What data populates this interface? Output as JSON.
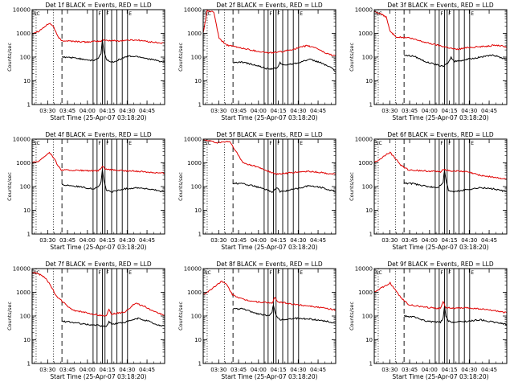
{
  "chart_data": {
    "type": "line",
    "layout": "3x3 grid",
    "legend_text": "BLACK = Events, RED = LLD",
    "series": [
      {
        "name": "Events",
        "color": "#000000"
      },
      {
        "name": "LLD",
        "color": "#e00000"
      }
    ],
    "xlabel": "Start Time (25-Apr-07 03:18:20)",
    "ylabel": "Counts/sec",
    "y_scale": "log",
    "ylim": [
      1,
      10000
    ],
    "y_ticks": [
      "1",
      "10",
      "100",
      "1000",
      "10000"
    ],
    "x_unit": "minutes after 03:18:20",
    "xlim": [
      0,
      100
    ],
    "x_ticks": [
      {
        "label": "03:30",
        "x": 11.7
      },
      {
        "label": "03:45",
        "x": 26.7
      },
      {
        "label": "04:00",
        "x": 41.7
      },
      {
        "label": "04:15",
        "x": 56.7
      },
      {
        "label": "04:30",
        "x": 71.7
      },
      {
        "label": "04:45",
        "x": 86.7
      }
    ],
    "dotted_markers_x": [
      3,
      16
    ],
    "dashed_marker_x": 22.5,
    "solid_markers_x": [
      46,
      49,
      53,
      55,
      60,
      64,
      68,
      72
    ],
    "flag_markers": [
      {
        "text": "F",
        "x": 49
      },
      {
        "text": "F",
        "x": 55
      },
      {
        "text": "E",
        "x": 72
      }
    ],
    "panels": [
      {
        "title": "Det 1f BLACK = Events, RED = LLD",
        "start_label": "SC",
        "start_label_x": 1,
        "lld": [
          [
            0,
            1000
          ],
          [
            5,
            1250
          ],
          [
            10,
            2000
          ],
          [
            13,
            2700
          ],
          [
            16,
            2000
          ],
          [
            19,
            800
          ],
          [
            22,
            500
          ],
          [
            30,
            470
          ],
          [
            40,
            430
          ],
          [
            46,
            450
          ],
          [
            52,
            470
          ],
          [
            54,
            520
          ],
          [
            58,
            500
          ],
          [
            66,
            480
          ],
          [
            72,
            520
          ],
          [
            80,
            520
          ],
          [
            90,
            430
          ],
          [
            100,
            380
          ]
        ],
        "events": [
          [
            22.5,
            100
          ],
          [
            30,
            95
          ],
          [
            40,
            80
          ],
          [
            46,
            70
          ],
          [
            50,
            90
          ],
          [
            52,
            140
          ],
          [
            53,
            500
          ],
          [
            54,
            200
          ],
          [
            56,
            80
          ],
          [
            60,
            60
          ],
          [
            66,
            80
          ],
          [
            72,
            110
          ],
          [
            80,
            105
          ],
          [
            90,
            80
          ],
          [
            100,
            60
          ]
        ]
      },
      {
        "title": "Det 2f BLACK = Events, RED = LLD",
        "start_label": "SC",
        "start_label_x": 1,
        "lld": [
          [
            0,
            1000
          ],
          [
            3,
            9000
          ],
          [
            8,
            8000
          ],
          [
            12,
            600
          ],
          [
            18,
            320
          ],
          [
            26,
            260
          ],
          [
            40,
            180
          ],
          [
            50,
            150
          ],
          [
            60,
            170
          ],
          [
            70,
            230
          ],
          [
            78,
            300
          ],
          [
            85,
            250
          ],
          [
            92,
            150
          ],
          [
            100,
            110
          ]
        ],
        "events": [
          [
            22.5,
            60
          ],
          [
            30,
            60
          ],
          [
            40,
            45
          ],
          [
            50,
            30
          ],
          [
            56,
            35
          ],
          [
            58,
            60
          ],
          [
            60,
            45
          ],
          [
            70,
            55
          ],
          [
            80,
            80
          ],
          [
            88,
            60
          ],
          [
            95,
            40
          ],
          [
            100,
            25
          ]
        ]
      },
      {
        "title": "Det 3f BLACK = Events, RED = LLD",
        "start_label": "SC",
        "start_label_x": 1,
        "lld": [
          [
            0,
            8000
          ],
          [
            4,
            7000
          ],
          [
            9,
            5000
          ],
          [
            12,
            1200
          ],
          [
            17,
            700
          ],
          [
            26,
            650
          ],
          [
            40,
            400
          ],
          [
            55,
            260
          ],
          [
            62,
            210
          ],
          [
            72,
            260
          ],
          [
            82,
            280
          ],
          [
            92,
            320
          ],
          [
            100,
            270
          ]
        ],
        "events": [
          [
            22.5,
            120
          ],
          [
            30,
            110
          ],
          [
            40,
            60
          ],
          [
            52,
            40
          ],
          [
            56,
            60
          ],
          [
            58,
            100
          ],
          [
            60,
            65
          ],
          [
            70,
            80
          ],
          [
            80,
            100
          ],
          [
            90,
            120
          ],
          [
            100,
            80
          ]
        ]
      },
      {
        "title": "Det 4f BLACK = Events, RED = LLD",
        "start_label": "SC",
        "start_label_x": 1,
        "lld": [
          [
            0,
            1000
          ],
          [
            5,
            1200
          ],
          [
            10,
            2000
          ],
          [
            13,
            2800
          ],
          [
            16,
            1700
          ],
          [
            20,
            700
          ],
          [
            22,
            500
          ],
          [
            40,
            470
          ],
          [
            50,
            450
          ],
          [
            53,
            700
          ],
          [
            56,
            520
          ],
          [
            70,
            460
          ],
          [
            80,
            440
          ],
          [
            90,
            400
          ],
          [
            100,
            360
          ]
        ],
        "events": [
          [
            22.5,
            120
          ],
          [
            30,
            110
          ],
          [
            40,
            90
          ],
          [
            46,
            80
          ],
          [
            50,
            100
          ],
          [
            52,
            150
          ],
          [
            53,
            500
          ],
          [
            54,
            200
          ],
          [
            56,
            70
          ],
          [
            60,
            60
          ],
          [
            70,
            80
          ],
          [
            80,
            90
          ],
          [
            90,
            75
          ],
          [
            100,
            60
          ]
        ]
      },
      {
        "title": "Det 5f BLACK = Events, RED = LLD",
        "start_label": "SC",
        "start_label_x": 1,
        "lld": [
          [
            0,
            9000
          ],
          [
            5,
            8500
          ],
          [
            10,
            7000
          ],
          [
            20,
            8000
          ],
          [
            30,
            1000
          ],
          [
            40,
            700
          ],
          [
            55,
            330
          ],
          [
            70,
            400
          ],
          [
            80,
            440
          ],
          [
            90,
            380
          ],
          [
            100,
            330
          ]
        ],
        "events": [
          [
            22.5,
            140
          ],
          [
            30,
            130
          ],
          [
            40,
            100
          ],
          [
            52,
            60
          ],
          [
            56,
            90
          ],
          [
            58,
            60
          ],
          [
            70,
            80
          ],
          [
            80,
            110
          ],
          [
            90,
            90
          ],
          [
            100,
            60
          ]
        ]
      },
      {
        "title": "Det 6f BLACK = Events, RED = LLD",
        "start_label": "SC",
        "start_label_x": 1,
        "lld": [
          [
            0,
            1000
          ],
          [
            5,
            1500
          ],
          [
            10,
            2500
          ],
          [
            12,
            2700
          ],
          [
            16,
            1500
          ],
          [
            20,
            800
          ],
          [
            26,
            500
          ],
          [
            40,
            450
          ],
          [
            50,
            420
          ],
          [
            52,
            550
          ],
          [
            56,
            470
          ],
          [
            70,
            420
          ],
          [
            80,
            300
          ],
          [
            90,
            250
          ],
          [
            100,
            200
          ]
        ],
        "events": [
          [
            22.5,
            140
          ],
          [
            30,
            130
          ],
          [
            40,
            100
          ],
          [
            48,
            90
          ],
          [
            52,
            150
          ],
          [
            53,
            500
          ],
          [
            54,
            200
          ],
          [
            56,
            70
          ],
          [
            60,
            60
          ],
          [
            70,
            75
          ],
          [
            80,
            90
          ],
          [
            90,
            80
          ],
          [
            100,
            60
          ]
        ]
      },
      {
        "title": "Det 7f BLACK = Events, RED = LLD",
        "start_label": "SC",
        "start_label_x": 1,
        "lld": [
          [
            0,
            7000
          ],
          [
            5,
            6000
          ],
          [
            10,
            4000
          ],
          [
            14,
            2000
          ],
          [
            18,
            700
          ],
          [
            22,
            450
          ],
          [
            30,
            180
          ],
          [
            40,
            140
          ],
          [
            50,
            110
          ],
          [
            56,
            100
          ],
          [
            58,
            200
          ],
          [
            60,
            120
          ],
          [
            70,
            150
          ],
          [
            78,
            350
          ],
          [
            85,
            250
          ],
          [
            92,
            150
          ],
          [
            100,
            110
          ]
        ],
        "events": [
          [
            22.5,
            60
          ],
          [
            30,
            55
          ],
          [
            40,
            45
          ],
          [
            50,
            40
          ],
          [
            56,
            35
          ],
          [
            58,
            60
          ],
          [
            60,
            45
          ],
          [
            70,
            55
          ],
          [
            80,
            80
          ],
          [
            88,
            60
          ],
          [
            95,
            40
          ],
          [
            100,
            40
          ]
        ]
      },
      {
        "title": "Det 8f BLACK = Events, RED = LLD",
        "start_label": "SC",
        "start_label_x": 1,
        "lld": [
          [
            0,
            800
          ],
          [
            5,
            1200
          ],
          [
            10,
            2000
          ],
          [
            14,
            3000
          ],
          [
            18,
            2000
          ],
          [
            22,
            800
          ],
          [
            30,
            500
          ],
          [
            40,
            400
          ],
          [
            52,
            350
          ],
          [
            54,
            600
          ],
          [
            56,
            400
          ],
          [
            70,
            300
          ],
          [
            80,
            270
          ],
          [
            90,
            220
          ],
          [
            100,
            180
          ]
        ],
        "events": [
          [
            22.5,
            200
          ],
          [
            30,
            200
          ],
          [
            40,
            130
          ],
          [
            50,
            100
          ],
          [
            52,
            150
          ],
          [
            53,
            300
          ],
          [
            55,
            100
          ],
          [
            58,
            70
          ],
          [
            70,
            80
          ],
          [
            80,
            75
          ],
          [
            90,
            65
          ],
          [
            100,
            50
          ]
        ]
      },
      {
        "title": "Det 9f BLACK = Events, RED = LLD",
        "start_label": "SC",
        "start_label_x": 1,
        "lld": [
          [
            0,
            1000
          ],
          [
            5,
            1500
          ],
          [
            10,
            2000
          ],
          [
            12,
            2500
          ],
          [
            16,
            1200
          ],
          [
            20,
            600
          ],
          [
            26,
            300
          ],
          [
            40,
            230
          ],
          [
            50,
            210
          ],
          [
            52,
            400
          ],
          [
            54,
            230
          ],
          [
            60,
            210
          ],
          [
            70,
            220
          ],
          [
            80,
            200
          ],
          [
            90,
            170
          ],
          [
            100,
            140
          ]
        ],
        "events": [
          [
            22.5,
            100
          ],
          [
            30,
            90
          ],
          [
            40,
            60
          ],
          [
            50,
            55
          ],
          [
            52,
            80
          ],
          [
            53,
            250
          ],
          [
            54,
            100
          ],
          [
            56,
            60
          ],
          [
            60,
            55
          ],
          [
            70,
            60
          ],
          [
            80,
            70
          ],
          [
            90,
            55
          ],
          [
            100,
            45
          ]
        ]
      }
    ]
  }
}
